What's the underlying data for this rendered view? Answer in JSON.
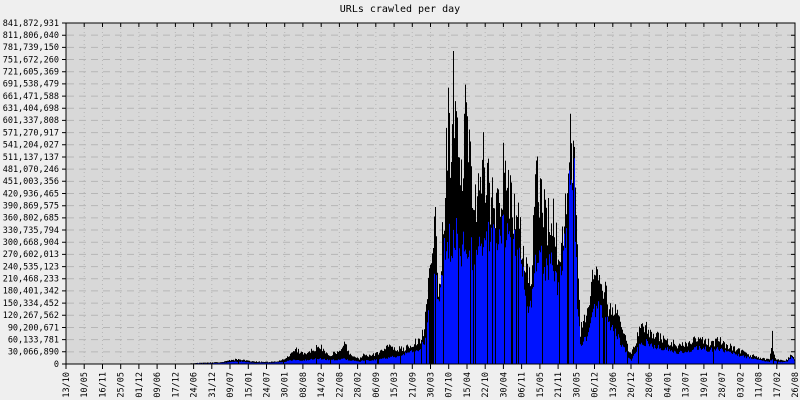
{
  "title": "URLs crawled per day",
  "colors": {
    "page_bg": "#efefef",
    "plot_bg": "#d8d8d8",
    "grid": "#b6b6b6",
    "bar_fill_blue": "#0013ff",
    "bar_border_black": "#000000",
    "axis": "#000000",
    "text": "#000000"
  },
  "chart_data": {
    "type": "bar",
    "title": "URLs crawled per day",
    "xlabel": "",
    "ylabel": "",
    "legend": "none",
    "grid": "on",
    "y_axis": {
      "min": 0,
      "max": 841872931,
      "tick_interval": 30066890,
      "tick_labels_bottom_to_top": [
        "0",
        "30,066,890",
        "60,133,781",
        "90,200,671",
        "120,267,562",
        "150,334,452",
        "180,401,342",
        "210,468,233",
        "240,535,123",
        "270,602,013",
        "300,668,904",
        "330,735,794",
        "360,802,685",
        "390,869,575",
        "420,936,465",
        "451,003,356",
        "481,070,246",
        "511,137,137",
        "541,204,027",
        "571,270,917",
        "601,337,808",
        "631,404,698",
        "661,471,588",
        "691,538,479",
        "721,605,369",
        "751,672,260",
        "781,739,150",
        "811,806,040",
        "841,872,931"
      ]
    },
    "x_axis": {
      "tick_labels": [
        "13/10",
        "10/05",
        "16/11",
        "25/05",
        "01/12",
        "09/06",
        "17/12",
        "24/06",
        "31/12",
        "09/07",
        "15/01",
        "24/07",
        "30/01",
        "08/08",
        "14/02",
        "22/08",
        "28/02",
        "06/09",
        "15/03",
        "21/09",
        "30/03",
        "07/10",
        "15/04",
        "22/10",
        "30/04",
        "06/11",
        "15/05",
        "21/11",
        "30/05",
        "06/12",
        "13/06",
        "20/12",
        "28/06",
        "04/01",
        "13/07",
        "19/01",
        "28/07",
        "03/02",
        "11/08",
        "17/02",
        "26/08"
      ],
      "label_rotation_deg": -90,
      "tick_spacing_days": 190
    },
    "series_units": "millions of URLs per day",
    "envelope_note": "Daily noisy series approximated by control points [x_px, peak_millions, sustained_millions]; x_px spans plot area 66..795",
    "envelope_points": [
      [
        66,
        0,
        0
      ],
      [
        120,
        0,
        0
      ],
      [
        185,
        0.5,
        0.2
      ],
      [
        192,
        2,
        1
      ],
      [
        200,
        3,
        2
      ],
      [
        210,
        4,
        2
      ],
      [
        222,
        5,
        3
      ],
      [
        228,
        9,
        4
      ],
      [
        235,
        13,
        6
      ],
      [
        242,
        12,
        6
      ],
      [
        248,
        8,
        4
      ],
      [
        255,
        7,
        3
      ],
      [
        262,
        6,
        3
      ],
      [
        270,
        6,
        3
      ],
      [
        278,
        8,
        4
      ],
      [
        285,
        14,
        6
      ],
      [
        290,
        26,
        9
      ],
      [
        296,
        40,
        11
      ],
      [
        301,
        32,
        10
      ],
      [
        306,
        26,
        10
      ],
      [
        311,
        36,
        12
      ],
      [
        316,
        45,
        13
      ],
      [
        320,
        52,
        14
      ],
      [
        325,
        30,
        11
      ],
      [
        330,
        26,
        10
      ],
      [
        336,
        32,
        11
      ],
      [
        341,
        40,
        12
      ],
      [
        345,
        57,
        13
      ],
      [
        349,
        30,
        10
      ],
      [
        354,
        20,
        8
      ],
      [
        359,
        14,
        6
      ],
      [
        363,
        27,
        9
      ],
      [
        368,
        22,
        9
      ],
      [
        373,
        26,
        10
      ],
      [
        378,
        32,
        12
      ],
      [
        383,
        40,
        14
      ],
      [
        388,
        50,
        16
      ],
      [
        392,
        44,
        18
      ],
      [
        396,
        40,
        20
      ],
      [
        400,
        45,
        24
      ],
      [
        404,
        40,
        26
      ],
      [
        408,
        50,
        30
      ],
      [
        412,
        55,
        32
      ],
      [
        416,
        62,
        36
      ],
      [
        420,
        70,
        42
      ],
      [
        424,
        95,
        58
      ],
      [
        427,
        190,
        115
      ],
      [
        430,
        265,
        170
      ],
      [
        432,
        390,
        230
      ],
      [
        435,
        375,
        255
      ],
      [
        438,
        205,
        160
      ],
      [
        441,
        300,
        255
      ],
      [
        444,
        430,
        290
      ],
      [
        447,
        680,
        305
      ],
      [
        450,
        625,
        315
      ],
      [
        453,
        757,
        325
      ],
      [
        456,
        605,
        330
      ],
      [
        459,
        635,
        305
      ],
      [
        462,
        560,
        290
      ],
      [
        465,
        700,
        300
      ],
      [
        468,
        645,
        290
      ],
      [
        471,
        540,
        280
      ],
      [
        474,
        490,
        265
      ],
      [
        477,
        470,
        255
      ],
      [
        480,
        520,
        300
      ],
      [
        484,
        560,
        330
      ],
      [
        488,
        505,
        340
      ],
      [
        492,
        465,
        320
      ],
      [
        496,
        435,
        310
      ],
      [
        500,
        470,
        330
      ],
      [
        504,
        565,
        355
      ],
      [
        508,
        485,
        340
      ],
      [
        512,
        435,
        320
      ],
      [
        516,
        405,
        300
      ],
      [
        520,
        385,
        280
      ],
      [
        524,
        305,
        220
      ],
      [
        528,
        245,
        155
      ],
      [
        531,
        225,
        140
      ],
      [
        534,
        420,
        240
      ],
      [
        537,
        560,
        300
      ],
      [
        540,
        455,
        280
      ],
      [
        543,
        435,
        260
      ],
      [
        546,
        405,
        250
      ],
      [
        550,
        440,
        255
      ],
      [
        554,
        385,
        230
      ],
      [
        558,
        305,
        205
      ],
      [
        562,
        350,
        240
      ],
      [
        565,
        480,
        330
      ],
      [
        568,
        580,
        500
      ],
      [
        571,
        600,
        540
      ],
      [
        574,
        550,
        470
      ],
      [
        577,
        290,
        150
      ],
      [
        580,
        95,
        52
      ],
      [
        583,
        115,
        58
      ],
      [
        586,
        130,
        66
      ],
      [
        589,
        180,
        95
      ],
      [
        592,
        230,
        120
      ],
      [
        595,
        245,
        140
      ],
      [
        598,
        215,
        150
      ],
      [
        601,
        225,
        135
      ],
      [
        604,
        230,
        130
      ],
      [
        607,
        165,
        105
      ],
      [
        610,
        155,
        92
      ],
      [
        613,
        150,
        88
      ],
      [
        616,
        142,
        82
      ],
      [
        619,
        115,
        62
      ],
      [
        622,
        85,
        46
      ],
      [
        625,
        68,
        34
      ],
      [
        628,
        42,
        16
      ],
      [
        631,
        26,
        9
      ],
      [
        634,
        55,
        28
      ],
      [
        638,
        85,
        46
      ],
      [
        642,
        98,
        52
      ],
      [
        646,
        100,
        55
      ],
      [
        650,
        92,
        50
      ],
      [
        654,
        86,
        46
      ],
      [
        658,
        78,
        44
      ],
      [
        662,
        72,
        42
      ],
      [
        666,
        68,
        40
      ],
      [
        670,
        62,
        37
      ],
      [
        674,
        56,
        33
      ],
      [
        678,
        49,
        29
      ],
      [
        682,
        52,
        30
      ],
      [
        686,
        56,
        33
      ],
      [
        690,
        60,
        36
      ],
      [
        694,
        65,
        39
      ],
      [
        698,
        68,
        42
      ],
      [
        702,
        65,
        40
      ],
      [
        706,
        61,
        38
      ],
      [
        710,
        59,
        37
      ],
      [
        714,
        58,
        36
      ],
      [
        718,
        74,
        40
      ],
      [
        722,
        60,
        36
      ],
      [
        726,
        53,
        33
      ],
      [
        730,
        48,
        29
      ],
      [
        734,
        43,
        26
      ],
      [
        738,
        38,
        23
      ],
      [
        742,
        34,
        20
      ],
      [
        746,
        29,
        17
      ],
      [
        750,
        25,
        15
      ],
      [
        754,
        22,
        13
      ],
      [
        758,
        18,
        11
      ],
      [
        762,
        16,
        9
      ],
      [
        766,
        13,
        7
      ],
      [
        769,
        12,
        6
      ],
      [
        771,
        50,
        10
      ],
      [
        772,
        110,
        12
      ],
      [
        773,
        40,
        9
      ],
      [
        775,
        14,
        7
      ],
      [
        778,
        12,
        6
      ],
      [
        781,
        10,
        5
      ],
      [
        784,
        11,
        6
      ],
      [
        787,
        13,
        7
      ],
      [
        789,
        20,
        12
      ],
      [
        791,
        26,
        17
      ],
      [
        793,
        18,
        12
      ],
      [
        795,
        8,
        4
      ]
    ]
  }
}
